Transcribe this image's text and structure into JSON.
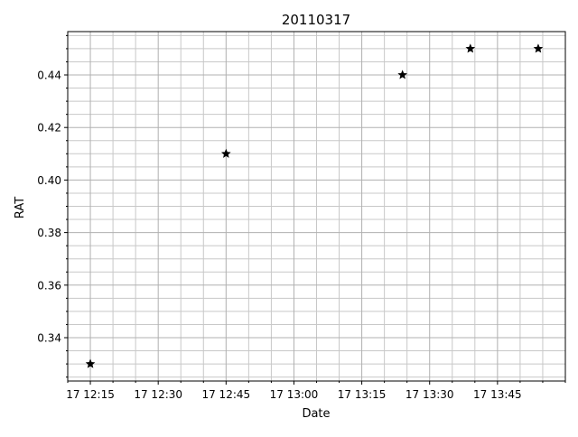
{
  "chart_data": {
    "type": "scatter",
    "title": "20110317",
    "xlabel": "Date",
    "ylabel": "RAT",
    "x_ticks": [
      "17 12:15",
      "17 12:30",
      "17 12:45",
      "17 13:00",
      "17 13:15",
      "17 13:30",
      "17 13:45"
    ],
    "y_ticks": [
      "0.34",
      "0.36",
      "0.38",
      "0.40",
      "0.42",
      "0.44"
    ],
    "xlim": [
      "2011-03-17 12:10",
      "2011-03-17 14:00"
    ],
    "ylim": [
      0.3235,
      0.4565
    ],
    "grid": true,
    "marker": "star",
    "marker_color": "#000000",
    "x": [
      "2011-03-17 12:15",
      "2011-03-17 12:45",
      "2011-03-17 13:24",
      "2011-03-17 13:39",
      "2011-03-17 13:54"
    ],
    "y": [
      0.33,
      0.41,
      0.44,
      0.45,
      0.45
    ]
  }
}
